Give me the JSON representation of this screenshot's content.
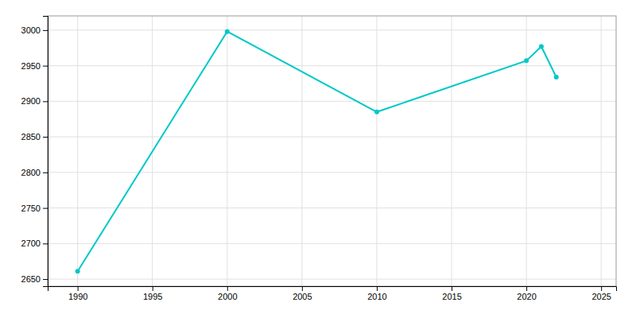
{
  "chart_data": {
    "type": "line",
    "x": [
      1990,
      2000,
      2010,
      2020,
      2021,
      2022
    ],
    "values": [
      2661,
      2998,
      2885,
      2957,
      2977,
      2934
    ],
    "color": "#00C8C8",
    "marker": "circle",
    "xlim": [
      1988,
      2026
    ],
    "ylim": [
      2640,
      3020
    ],
    "xticks": [
      1990,
      1995,
      2000,
      2005,
      2010,
      2015,
      2020,
      2025
    ],
    "yticks": [
      2650,
      2700,
      2750,
      2800,
      2850,
      2900,
      2950,
      3000
    ],
    "grid": true
  }
}
